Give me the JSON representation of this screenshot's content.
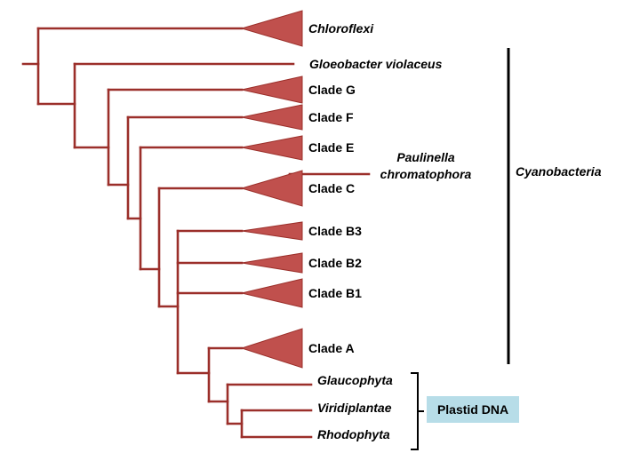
{
  "taxa": {
    "chloroflexi": {
      "label": "Chloroflexi",
      "color": "#000000"
    },
    "gloeobacter": {
      "label": "Gloeobacter violaceus",
      "color": "#000000"
    },
    "clade_g": {
      "label": "Clade G",
      "color": "#000000"
    },
    "clade_f": {
      "label": "Clade F",
      "color": "#000000"
    },
    "clade_e": {
      "label": "Clade E",
      "color": "#000000"
    },
    "clade_c": {
      "label": "Clade C",
      "color": "#000000"
    },
    "clade_b3": {
      "label": "Clade B3",
      "color": "#000000"
    },
    "clade_b2": {
      "label": "Clade B2",
      "color": "#000000"
    },
    "clade_b1": {
      "label": "Clade B1",
      "color": "#000000"
    },
    "clade_a": {
      "label": "Clade A",
      "color": "#000000"
    },
    "glaucophyta": {
      "label": "Glaucophyta",
      "color": "#31849b"
    },
    "viridiplantae": {
      "label": "Viridiplantae",
      "color": "#00b050"
    },
    "rhodophyta": {
      "label": "Rhodophyta",
      "color": "#ff0000"
    }
  },
  "paulinella": {
    "line1": "Paulinella",
    "line2": "chromatophora",
    "color": "#4f6228"
  },
  "groups": {
    "cyanobacteria": {
      "label": "Cyanobacteria"
    },
    "plastid_dna": {
      "label": "Plastid DNA",
      "box_color": "#b7dde8"
    }
  },
  "colors": {
    "branch": "#9b2f2a",
    "triangle": "#c0504d"
  }
}
